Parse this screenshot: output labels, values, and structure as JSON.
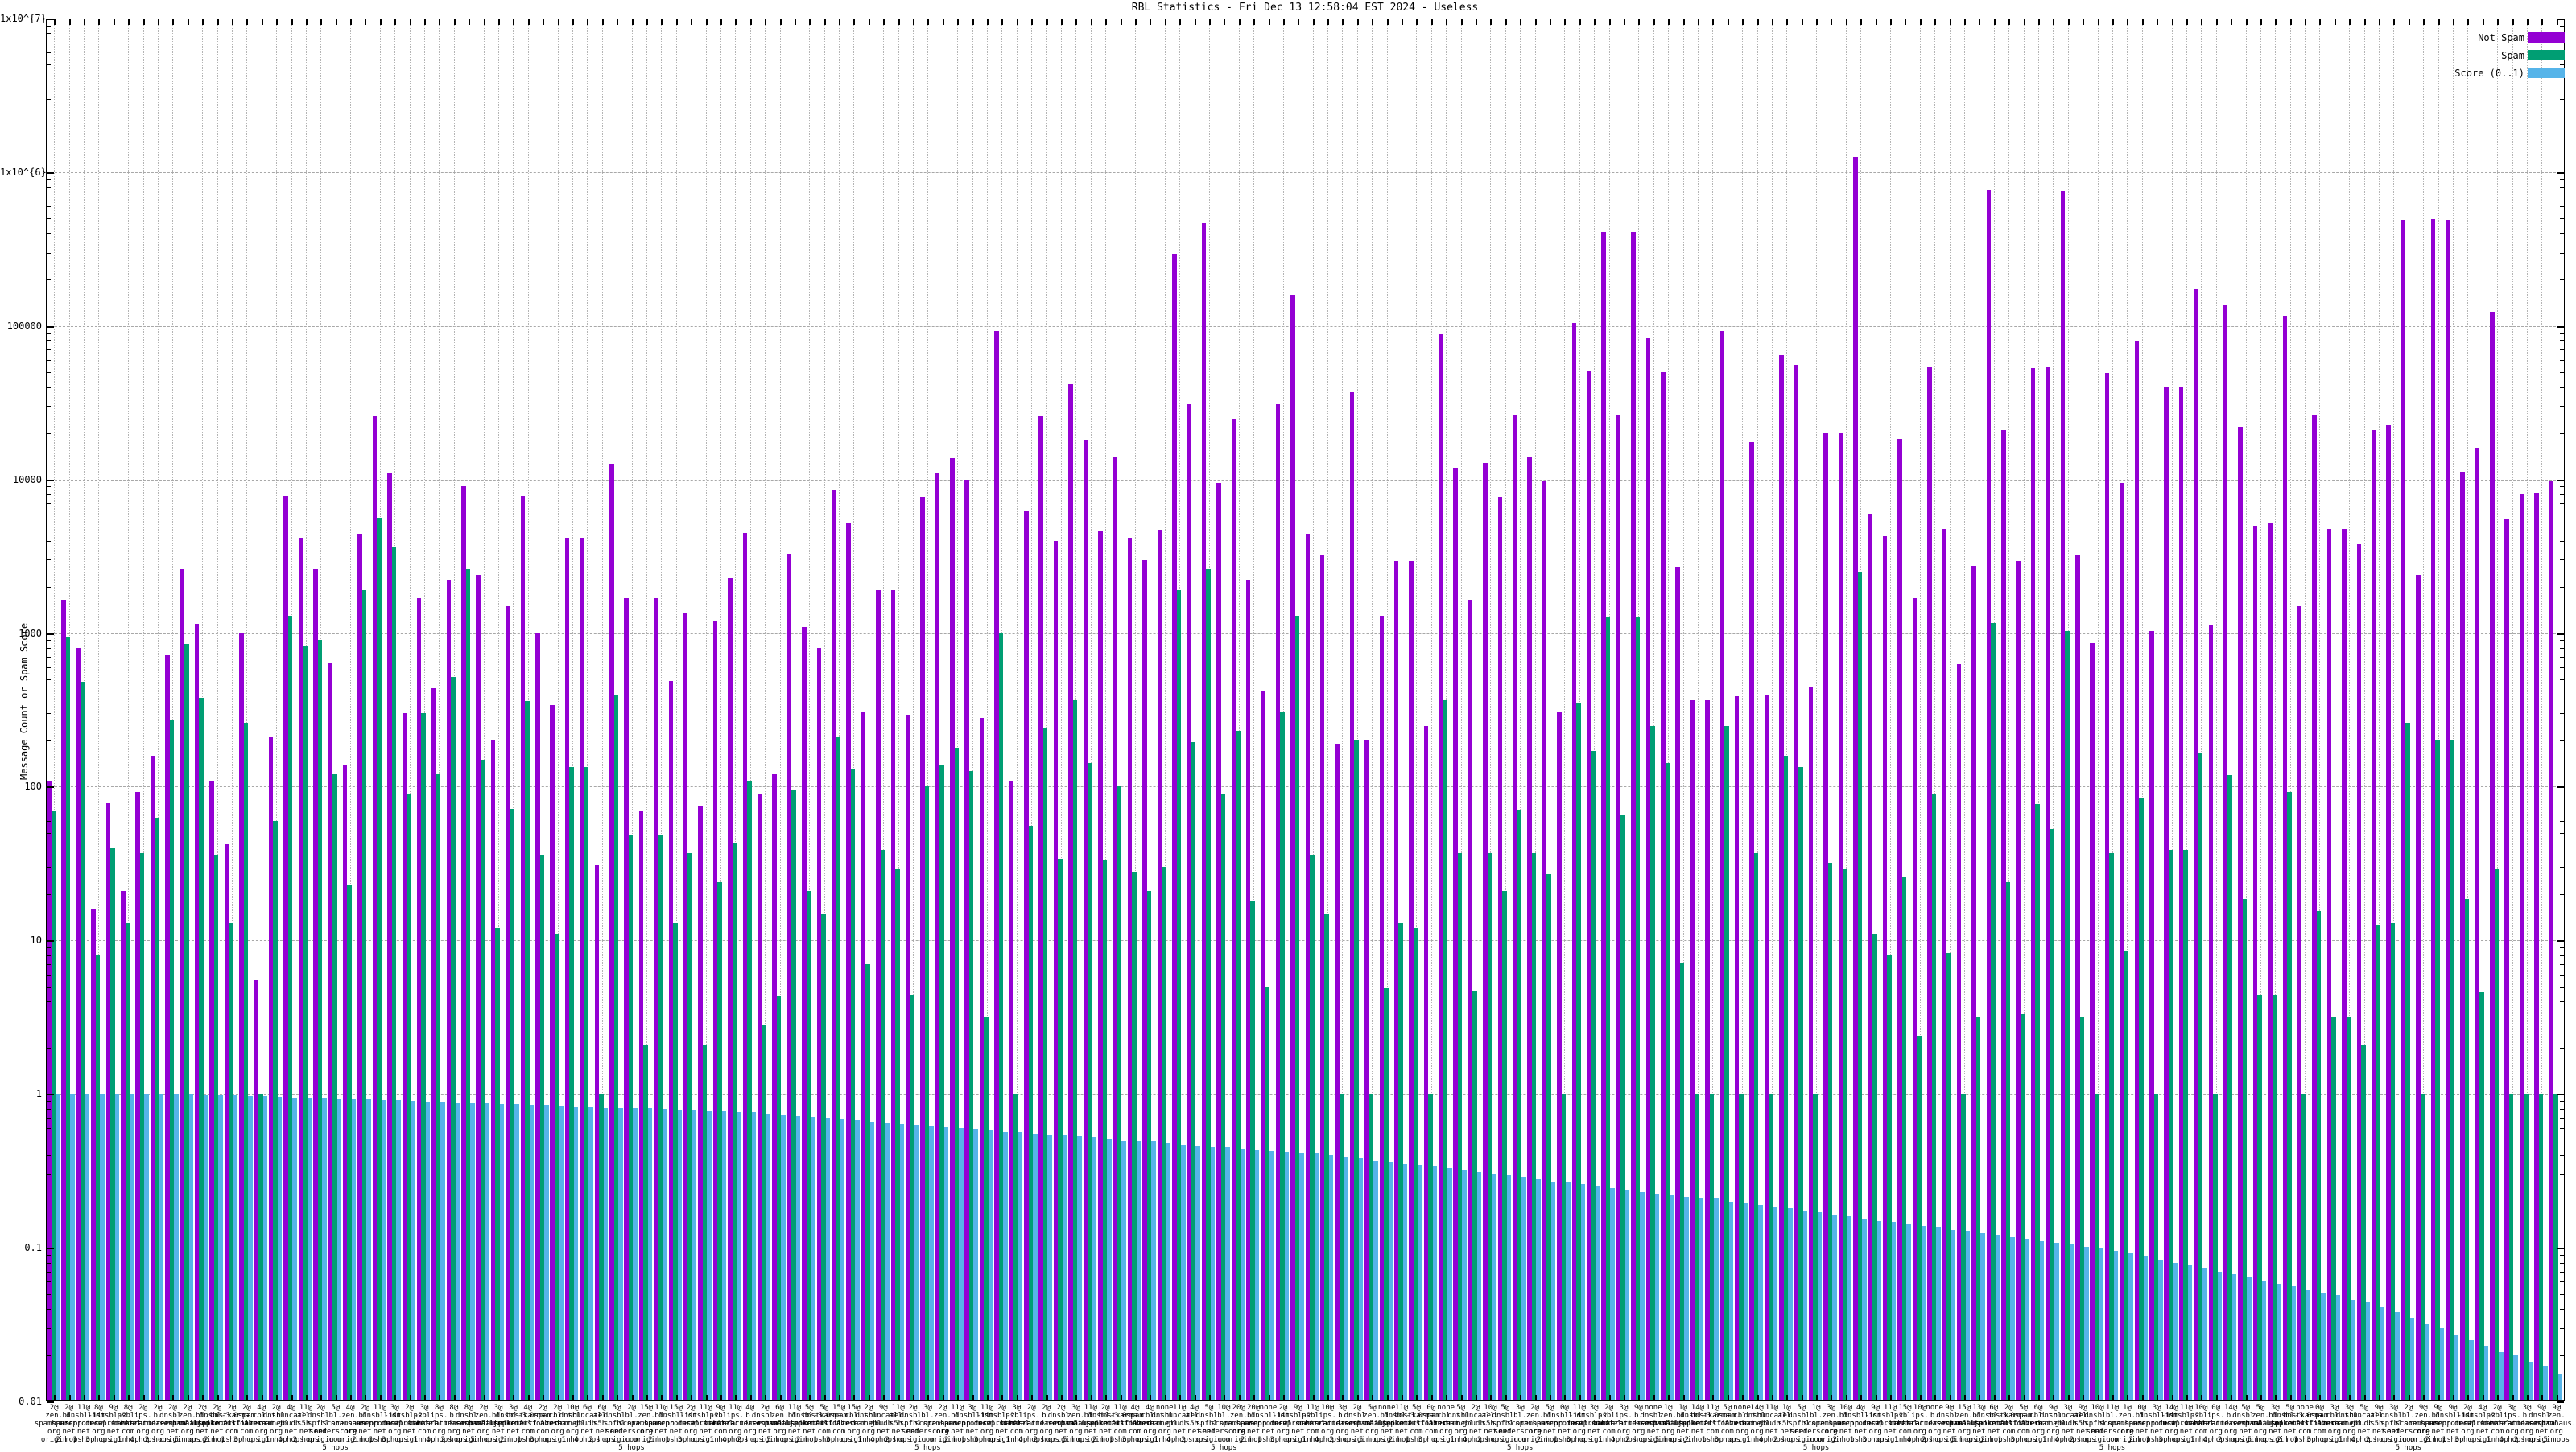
{
  "title": "RBL Statistics - Fri Dec 13 12:58:04 EST 2024 - Useless",
  "y_axis": {
    "label": "Message Count or Spam Score",
    "tick_labels": [
      "1x10^{7}",
      "1x10^{6}",
      "100000",
      "10000",
      "1000",
      "100",
      "10",
      "1",
      "0.1",
      "0.01"
    ]
  },
  "legend": {
    "items": [
      {
        "label": "Not Spam",
        "color": "#9400d3"
      },
      {
        "label": "Spam",
        "color": "#009e73"
      },
      {
        "label": "Score (0..1)",
        "color": "#56b4e9"
      }
    ]
  },
  "chart_data": {
    "type": "bar",
    "title": "RBL Statistics - Fri Dec 13 12:58:04 EST 2024 - Useless",
    "xlabel": "",
    "ylabel": "Message Count or Spam Score",
    "y_scale": "log",
    "ylim": [
      0.01,
      10000000
    ],
    "grid": true,
    "legend_position": "top-right",
    "series": [
      {
        "name": "Not Spam",
        "color": "#9400d3",
        "values": [
          110,
          1650,
          800,
          16,
          78,
          21,
          92,
          160,
          720,
          2600,
          1150,
          110,
          42,
          1000,
          5.5,
          210,
          7800,
          4200,
          2600,
          640,
          140,
          4400,
          26000,
          11000,
          300,
          1700,
          440,
          2200,
          9000,
          2400,
          200,
          1500,
          7800,
          1000,
          340,
          4200,
          4200,
          31,
          12500,
          1700,
          69,
          1700,
          490,
          1350,
          75,
          1200,
          2300,
          4500,
          90,
          120,
          3300,
          1100,
          800,
          8500,
          5200,
          310,
          1900,
          1900,
          295,
          7600,
          11000,
          13800,
          10000,
          280,
          93000,
          110,
          6200,
          26000,
          4000,
          42000,
          18000,
          4600,
          14000,
          4200,
          3000,
          4700,
          295000,
          31000,
          470000,
          9500,
          25000,
          2200,
          420,
          31000,
          160000,
          4400,
          3200,
          190,
          37000,
          200,
          1290,
          2950,
          2950,
          250,
          88000,
          12000,
          1630,
          12800,
          7600,
          26500,
          14000,
          9900,
          310,
          105000,
          51000,
          410000,
          26500,
          410000,
          83000,
          50000,
          2700,
          365,
          365,
          93000,
          390,
          17500,
          395,
          65000,
          56000,
          450,
          20000,
          20000,
          1250000,
          5950,
          4300,
          18200,
          1700,
          54000,
          4800,
          630,
          2750,
          770000,
          21000,
          2950,
          53000,
          54000,
          760000,
          3200,
          860,
          49000,
          9500,
          79000,
          1030,
          40000,
          40000,
          173000,
          1140,
          137000,
          22000,
          5000,
          5200,
          117000,
          1500,
          26500,
          4800,
          4750,
          3800,
          21000,
          22500,
          490000,
          2400,
          495000,
          490000,
          11200,
          16000,
          123000,
          5500,
          8000,
          8100,
          9700
        ]
      },
      {
        "name": "Spam",
        "color": "#009e73",
        "values": [
          70,
          950,
          480,
          8,
          40,
          13,
          37,
          63,
          270,
          850,
          380,
          36,
          13,
          260,
          1,
          60,
          1300,
          830,
          900,
          120,
          23,
          1900,
          5600,
          3600,
          90,
          300,
          120,
          520,
          2600,
          150,
          12,
          72,
          360,
          36,
          11,
          135,
          134,
          1,
          400,
          48,
          2.1,
          48,
          13,
          37,
          2.1,
          24,
          43,
          110,
          2.8,
          4.3,
          95,
          21,
          15,
          210,
          130,
          7,
          39,
          29,
          4.4,
          100,
          140,
          180,
          126,
          3.2,
          990,
          1,
          56,
          240,
          34,
          365,
          142,
          33,
          100,
          28,
          21,
          30,
          1900,
          195,
          2600,
          90,
          230,
          18,
          5,
          310,
          1300,
          36,
          15,
          1,
          200,
          1,
          4.9,
          13,
          12,
          1,
          365,
          37,
          4.7,
          37,
          21,
          71,
          37,
          27,
          1,
          350,
          172,
          1280,
          66,
          1280,
          250,
          142,
          7.1,
          1,
          1,
          250,
          1,
          37,
          1,
          160,
          135,
          1,
          32,
          29,
          2500,
          11,
          8.1,
          26,
          2.4,
          89,
          8.3,
          1,
          3.2,
          1170,
          24,
          3.3,
          77,
          53,
          1030,
          3.2,
          1,
          37,
          8.6,
          85,
          1,
          39,
          39,
          167,
          1,
          119,
          18.6,
          4.4,
          4.4,
          92,
          1,
          15.6,
          3.2,
          3.2,
          2.1,
          12.7,
          13,
          260,
          1,
          200,
          200,
          18.6,
          4.6,
          29,
          1,
          1,
          1,
          1
        ]
      },
      {
        "name": "Score (0..1)",
        "color": "#56b4e9",
        "values": [
          1,
          1,
          1,
          1,
          1,
          1,
          1,
          1,
          1,
          1,
          0.99,
          0.99,
          0.98,
          0.97,
          0.97,
          0.96,
          0.95,
          0.95,
          0.94,
          0.93,
          0.93,
          0.92,
          0.91,
          0.91,
          0.9,
          0.89,
          0.89,
          0.88,
          0.88,
          0.87,
          0.86,
          0.86,
          0.85,
          0.85,
          0.84,
          0.83,
          0.83,
          0.82,
          0.82,
          0.81,
          0.81,
          0.8,
          0.79,
          0.79,
          0.78,
          0.78,
          0.77,
          0.76,
          0.74,
          0.73,
          0.72,
          0.71,
          0.7,
          0.69,
          0.67,
          0.66,
          0.65,
          0.64,
          0.63,
          0.62,
          0.61,
          0.6,
          0.59,
          0.58,
          0.57,
          0.56,
          0.55,
          0.54,
          0.54,
          0.53,
          0.52,
          0.51,
          0.5,
          0.49,
          0.49,
          0.48,
          0.47,
          0.46,
          0.455,
          0.45,
          0.44,
          0.43,
          0.425,
          0.42,
          0.41,
          0.41,
          0.4,
          0.39,
          0.38,
          0.37,
          0.36,
          0.35,
          0.345,
          0.34,
          0.33,
          0.32,
          0.31,
          0.3,
          0.295,
          0.29,
          0.28,
          0.27,
          0.265,
          0.26,
          0.25,
          0.245,
          0.24,
          0.23,
          0.225,
          0.22,
          0.215,
          0.21,
          0.21,
          0.2,
          0.195,
          0.19,
          0.185,
          0.18,
          0.175,
          0.17,
          0.165,
          0.16,
          0.155,
          0.15,
          0.147,
          0.143,
          0.139,
          0.135,
          0.131,
          0.128,
          0.124,
          0.121,
          0.117,
          0.114,
          0.111,
          0.108,
          0.105,
          0.102,
          0.099,
          0.096,
          0.092,
          0.088,
          0.084,
          0.08,
          0.077,
          0.073,
          0.07,
          0.067,
          0.064,
          0.061,
          0.058,
          0.056,
          0.053,
          0.051,
          0.049,
          0.046,
          0.044,
          0.041,
          0.038,
          0.035,
          0.032,
          0.03,
          0.027,
          0.025,
          0.023,
          0.021,
          0.02,
          0.018,
          0.017,
          0.015
        ]
      }
    ],
    "categories": {
      "counts": [
        "2@",
        "2@",
        "11@",
        "8@",
        "9@",
        "8@",
        "2@",
        "2@",
        "2@",
        "2@",
        "2@",
        "2@",
        "2@",
        "2@",
        "4@",
        "2@",
        "4@",
        "11@",
        "2@",
        "5@",
        "4@",
        "2@",
        "11@",
        "3@",
        "2@",
        "3@",
        "8@",
        "8@",
        "8@",
        "2@",
        "3@",
        "3@",
        "4@",
        "2@",
        "2@",
        "10@",
        "6@",
        "6@",
        "5@",
        "2@",
        "15@",
        "11@",
        "15@",
        "2@",
        "11@",
        "9@",
        "11@",
        "4@",
        "2@",
        "6@",
        "11@",
        "5@",
        "5@",
        "15@",
        "15@",
        "2@",
        "9@",
        "11@",
        "2@",
        "3@",
        "2@",
        "11@",
        "3@",
        "11@",
        "2@",
        "3@",
        "2@",
        "2@",
        "2@",
        "3@",
        "11@",
        "2@",
        "11@",
        "4@",
        "4@",
        "none",
        "11@",
        "4@",
        "5@",
        "10@",
        "20@",
        "20@",
        "none",
        "2@",
        "9@",
        "11@",
        "10@",
        "3@",
        "2@",
        "5@",
        "none",
        "11@",
        "5@",
        "0@",
        "none",
        "5@",
        "2@",
        "10@",
        "5@",
        "3@",
        "2@",
        "5@",
        "0@",
        "11@",
        "3@",
        "2@",
        "3@",
        "9@",
        "none",
        "1@",
        "1@",
        "14@",
        "11@",
        "5@",
        "none",
        "14@",
        "11@",
        "1@",
        "5@",
        "1@",
        "3@",
        "10@",
        "4@",
        "9@",
        "11@",
        "15@",
        "10@",
        "none",
        "9@",
        "15@",
        "13@",
        "6@",
        "2@",
        "5@",
        "6@",
        "9@",
        "3@",
        "9@",
        "10@",
        "11@",
        "1@",
        "0@",
        "3@",
        "14@",
        "11@",
        "10@",
        "0@",
        "14@",
        "5@",
        "5@",
        "3@",
        "5@",
        "none",
        "0@",
        "3@",
        "3@",
        "5@",
        "9@",
        "3@",
        "2@",
        "9@",
        "9@",
        "9@",
        "2@",
        "4@",
        "2@",
        "3@",
        "3@",
        "9@",
        "9@"
      ],
      "domains": [
        "zen.spamhaus.org",
        "bl.spamcop.net",
        "dnsbl-1.uceprotect.net",
        "list.dnswl.org",
        "dnsbl-2.uceprotect.net",
        "psbl.surriel.com",
        "ips.backscatterer.org",
        "b.barracudacentral.org",
        "dnsbl.sorbs.net",
        "zen.spamhaus.org",
        "bl.mailspike.net",
        "dnsbl-3.uceprotect.net",
        "hostkarma.junkemailfilter.com",
        "0spam.fusionzero.com",
        "cbl.abuseat.org",
        "dnsbl.dronebl.org",
        "truncate.gbudb.net",
        "all.s5h.net",
        "dnsbl.spfbl.net",
        "bl.score.senderscore.com",
        "zen.spamhaus.org",
        "bl.spamcop.net",
        "dnsbl-1.uceprotect.net",
        "list.dnswl.org",
        "dnsbl-2.uceprotect.net",
        "psbl.surriel.com",
        "ips.backscatterer.org",
        "b.barracudacentral.org",
        "dnsbl.sorbs.net",
        "zen.spamhaus.org",
        "bl.mailspike.net",
        "dnsbl-3.uceprotect.net",
        "hostkarma.junkemailfilter.com",
        "0spam.fusionzero.com",
        "cbl.abuseat.org",
        "dnsbl.dronebl.org",
        "truncate.gbudb.net",
        "all.s5h.net",
        "dnsbl.spfbl.net",
        "bl.score.senderscore.com",
        "zen.spamhaus.org",
        "bl.spamcop.net",
        "dnsbl-1.uceprotect.net",
        "list.dnswl.org",
        "dnsbl-2.uceprotect.net",
        "psbl.surriel.com",
        "ips.backscatterer.org",
        "b.barracudacentral.org",
        "dnsbl.sorbs.net",
        "zen.spamhaus.org",
        "bl.mailspike.net",
        "dnsbl-3.uceprotect.net",
        "hostkarma.junkemailfilter.com",
        "0spam.fusionzero.com",
        "cbl.abuseat.org",
        "dnsbl.dronebl.org",
        "truncate.gbudb.net",
        "all.s5h.net",
        "dnsbl.spfbl.net",
        "bl.score.senderscore.com",
        "zen.spamhaus.org",
        "bl.spamcop.net",
        "dnsbl-1.uceprotect.net",
        "list.dnswl.org",
        "dnsbl-2.uceprotect.net",
        "psbl.surriel.com",
        "ips.backscatterer.org",
        "b.barracudacentral.org",
        "dnsbl.sorbs.net",
        "zen.spamhaus.org",
        "bl.mailspike.net",
        "dnsbl-3.uceprotect.net",
        "hostkarma.junkemailfilter.com",
        "0spam.fusionzero.com",
        "cbl.abuseat.org",
        "dnsbl.dronebl.org",
        "truncate.gbudb.net",
        "all.s5h.net",
        "dnsbl.spfbl.net",
        "bl.score.senderscore.com",
        "zen.spamhaus.org",
        "bl.spamcop.net",
        "dnsbl-1.uceprotect.net",
        "list.dnswl.org",
        "dnsbl-2.uceprotect.net",
        "psbl.surriel.com",
        "ips.backscatterer.org",
        "b.barracudacentral.org",
        "dnsbl.sorbs.net",
        "zen.spamhaus.org",
        "bl.mailspike.net",
        "dnsbl-3.uceprotect.net",
        "hostkarma.junkemailfilter.com",
        "0spam.fusionzero.com",
        "cbl.abuseat.org",
        "dnsbl.dronebl.org",
        "truncate.gbudb.net",
        "all.s5h.net",
        "dnsbl.spfbl.net",
        "bl.score.senderscore.com",
        "zen.spamhaus.org",
        "bl.spamcop.net",
        "dnsbl-1.uceprotect.net",
        "list.dnswl.org",
        "dnsbl-2.uceprotect.net",
        "psbl.surriel.com",
        "ips.backscatterer.org",
        "b.barracudacentral.org",
        "dnsbl.sorbs.net",
        "zen.spamhaus.org",
        "bl.mailspike.net",
        "dnsbl-3.uceprotect.net",
        "hostkarma.junkemailfilter.com",
        "0spam.fusionzero.com",
        "cbl.abuseat.org",
        "dnsbl.dronebl.org",
        "truncate.gbudb.net",
        "all.s5h.net",
        "dnsbl.spfbl.net",
        "bl.score.senderscore.com",
        "zen.spamhaus.org",
        "bl.spamcop.net",
        "dnsbl-1.uceprotect.net",
        "list.dnswl.org",
        "dnsbl-2.uceprotect.net",
        "psbl.surriel.com",
        "ips.backscatterer.org",
        "b.barracudacentral.org",
        "dnsbl.sorbs.net",
        "zen.spamhaus.org",
        "bl.mailspike.net",
        "dnsbl-3.uceprotect.net",
        "hostkarma.junkemailfilter.com",
        "0spam.fusionzero.com",
        "cbl.abuseat.org",
        "dnsbl.dronebl.org",
        "truncate.gbudb.net",
        "all.s5h.net",
        "dnsbl.spfbl.net",
        "bl.score.senderscore.com",
        "zen.spamhaus.org",
        "bl.spamcop.net",
        "dnsbl-1.uceprotect.net",
        "list.dnswl.org",
        "dnsbl-2.uceprotect.net",
        "psbl.surriel.com",
        "ips.backscatterer.org",
        "b.barracudacentral.org",
        "dnsbl.sorbs.net",
        "zen.spamhaus.org",
        "bl.mailspike.net",
        "dnsbl-3.uceprotect.net",
        "hostkarma.junkemailfilter.com",
        "0spam.fusionzero.com",
        "cbl.abuseat.org",
        "dnsbl.dronebl.org",
        "truncate.gbudb.net",
        "all.s5h.net",
        "dnsbl.spfbl.net",
        "bl.score.senderscore.com",
        "zen.spamhaus.org",
        "bl.spamcop.net",
        "dnsbl-1.uceprotect.net",
        "list.dnswl.org",
        "dnsbl-2.uceprotect.net",
        "psbl.surriel.com",
        "ips.backscatterer.org",
        "b.barracudacentral.org",
        "dnsbl.sorbs.net",
        "zen.spamhaus.org"
      ],
      "hops": [
        "origin",
        "2 hops",
        "1 hop",
        "3 hops",
        "origin",
        "1 hop",
        "4 hops",
        "2 hops",
        "origin",
        "5 hops",
        "origin",
        "2 hops",
        "1 hop",
        "3 hops",
        "origin",
        "1 hop",
        "4 hops",
        "2 hops",
        "origin",
        "5 hops",
        "origin",
        "2 hops",
        "1 hop",
        "3 hops",
        "origin",
        "1 hop",
        "4 hops",
        "2 hops",
        "origin",
        "5 hops",
        "origin",
        "2 hops",
        "1 hop",
        "3 hops",
        "origin",
        "1 hop",
        "4 hops",
        "2 hops",
        "origin",
        "5 hops",
        "origin",
        "2 hops",
        "1 hop",
        "3 hops",
        "origin",
        "1 hop",
        "4 hops",
        "2 hops",
        "origin",
        "5 hops",
        "origin",
        "2 hops",
        "1 hop",
        "3 hops",
        "origin",
        "1 hop",
        "4 hops",
        "2 hops",
        "origin",
        "5 hops",
        "origin",
        "2 hops",
        "1 hop",
        "3 hops",
        "origin",
        "1 hop",
        "4 hops",
        "2 hops",
        "origin",
        "5 hops",
        "origin",
        "2 hops",
        "1 hop",
        "3 hops",
        "origin",
        "1 hop",
        "4 hops",
        "2 hops",
        "origin",
        "5 hops",
        "origin",
        "2 hops",
        "1 hop",
        "3 hops",
        "origin",
        "1 hop",
        "4 hops",
        "2 hops",
        "origin",
        "5 hops",
        "origin",
        "2 hops",
        "1 hop",
        "3 hops",
        "origin",
        "1 hop",
        "4 hops",
        "2 hops",
        "origin",
        "5 hops",
        "origin",
        "2 hops",
        "1 hop",
        "3 hops",
        "origin",
        "1 hop",
        "4 hops",
        "2 hops",
        "origin",
        "5 hops",
        "origin",
        "2 hops",
        "1 hop",
        "3 hops",
        "origin",
        "1 hop",
        "4 hops",
        "2 hops",
        "origin",
        "5 hops",
        "origin",
        "2 hops",
        "1 hop",
        "3 hops",
        "origin",
        "1 hop",
        "4 hops",
        "2 hops",
        "origin",
        "5 hops",
        "origin",
        "2 hops",
        "1 hop",
        "3 hops",
        "origin",
        "1 hop",
        "4 hops",
        "2 hops",
        "origin",
        "5 hops",
        "origin",
        "2 hops",
        "1 hop",
        "3 hops",
        "origin",
        "1 hop",
        "4 hops",
        "2 hops",
        "origin",
        "5 hops",
        "origin",
        "2 hops",
        "1 hop",
        "3 hops",
        "origin",
        "1 hop",
        "4 hops",
        "2 hops",
        "origin",
        "5 hops",
        "origin",
        "2 hops",
        "1 hop",
        "3 hops",
        "origin",
        "1 hop",
        "4 hops",
        "2 hops",
        "origin",
        "5 hops"
      ]
    }
  }
}
